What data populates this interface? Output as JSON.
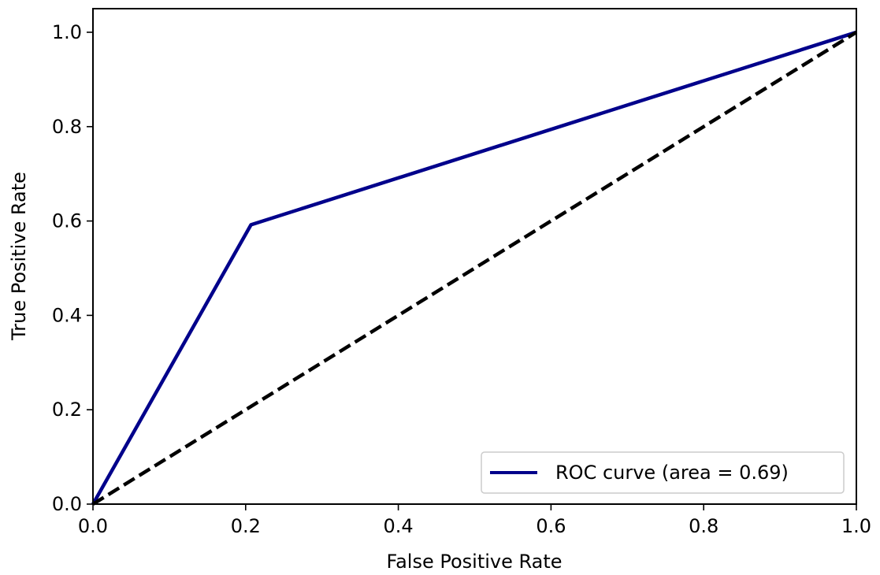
{
  "chart_data": {
    "type": "line",
    "title": "",
    "xlabel": "False Positive Rate",
    "ylabel": "True Positive Rate",
    "xlim": [
      0.0,
      1.0
    ],
    "ylim": [
      0.0,
      1.05
    ],
    "xticks": [
      "0.0",
      "0.2",
      "0.4",
      "0.6",
      "0.8",
      "1.0"
    ],
    "yticks": [
      "0.0",
      "0.2",
      "0.4",
      "0.6",
      "0.8",
      "1.0"
    ],
    "grid": false,
    "legend_position": "lower right",
    "series": [
      {
        "name": "ROC curve (area = 0.69)",
        "color": "#00008b",
        "style": "solid",
        "x": [
          0.0,
          0.207,
          1.0
        ],
        "y": [
          0.0,
          0.592,
          1.0
        ]
      },
      {
        "color": "#000000",
        "style": "dashed",
        "x": [
          0.0,
          1.0
        ],
        "y": [
          0.0,
          1.0
        ]
      }
    ]
  }
}
